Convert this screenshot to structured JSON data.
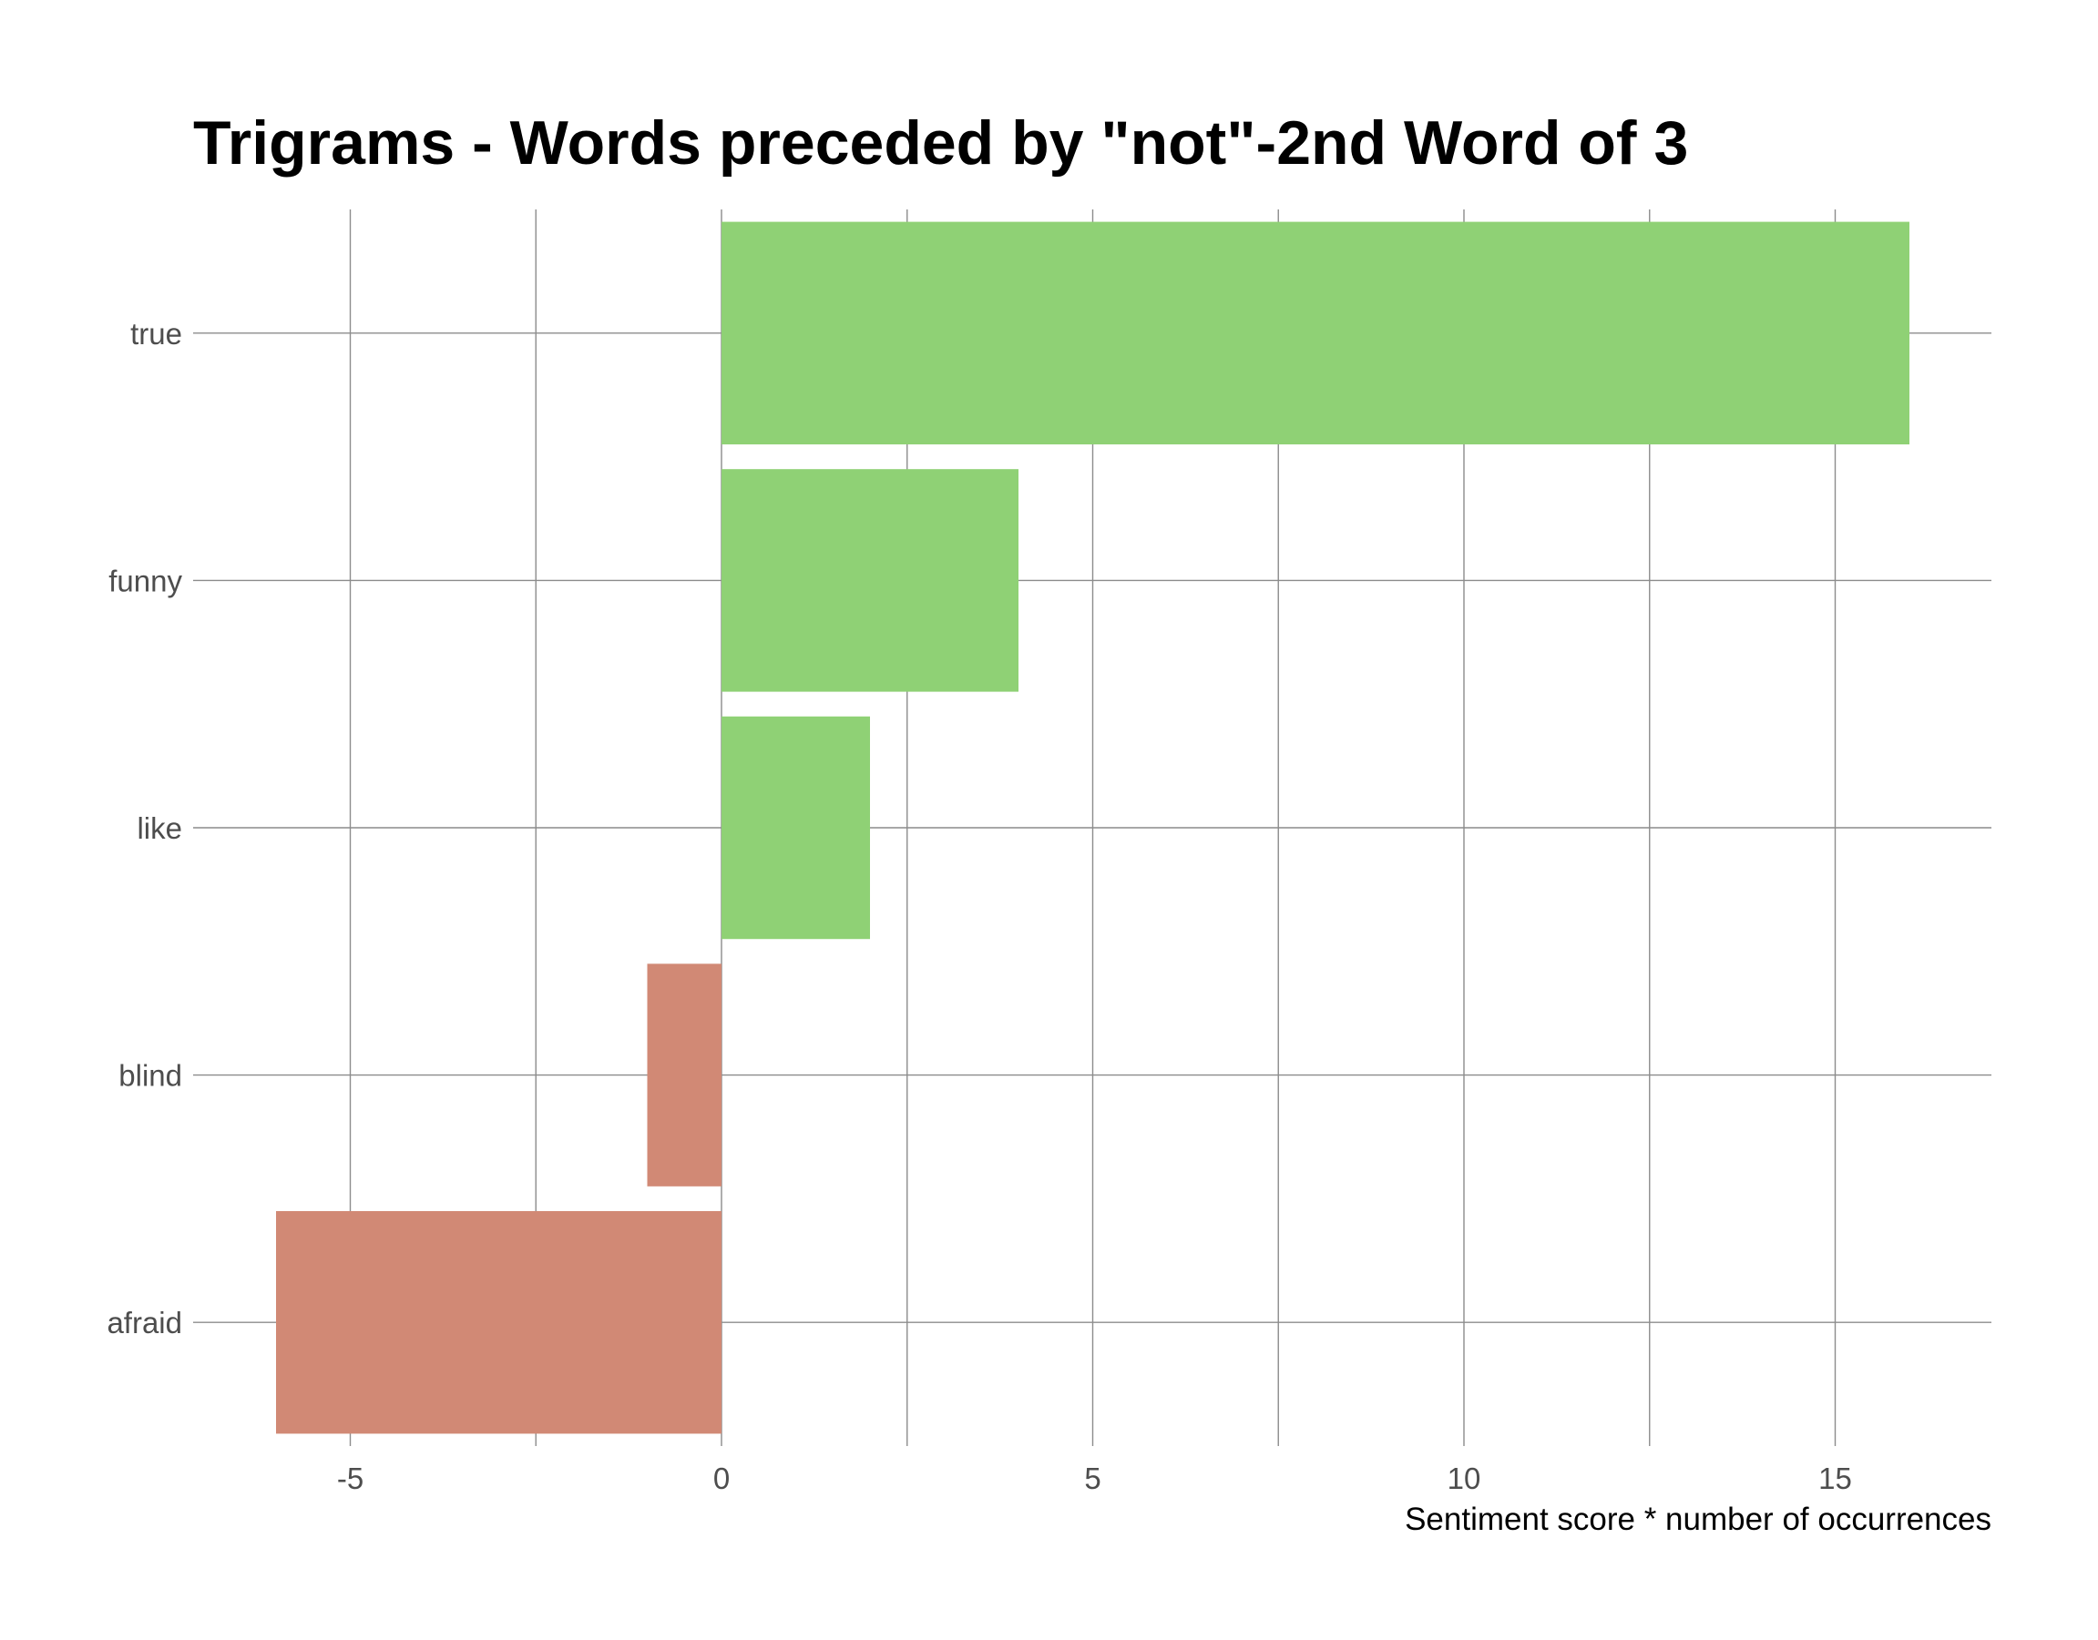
{
  "chart_data": {
    "type": "bar",
    "orientation": "horizontal",
    "title": "Trigrams - Words preceded by \"not\"-2nd Word of 3",
    "xlabel": "Sentiment score * number of occurrences",
    "ylabel": "",
    "categories": [
      "true",
      "funny",
      "like",
      "blind",
      "afraid"
    ],
    "values": [
      16,
      4,
      2,
      -1,
      -6
    ],
    "xlim": [
      -7,
      17.2
    ],
    "x_ticks": [
      -5,
      0,
      5,
      10,
      15
    ],
    "x_tick_labels": [
      "-5",
      "0",
      "5",
      "10",
      "15"
    ],
    "grid": true,
    "legend": "none",
    "colors": {
      "positive": "#8fd175",
      "negative": "#d18975"
    }
  }
}
